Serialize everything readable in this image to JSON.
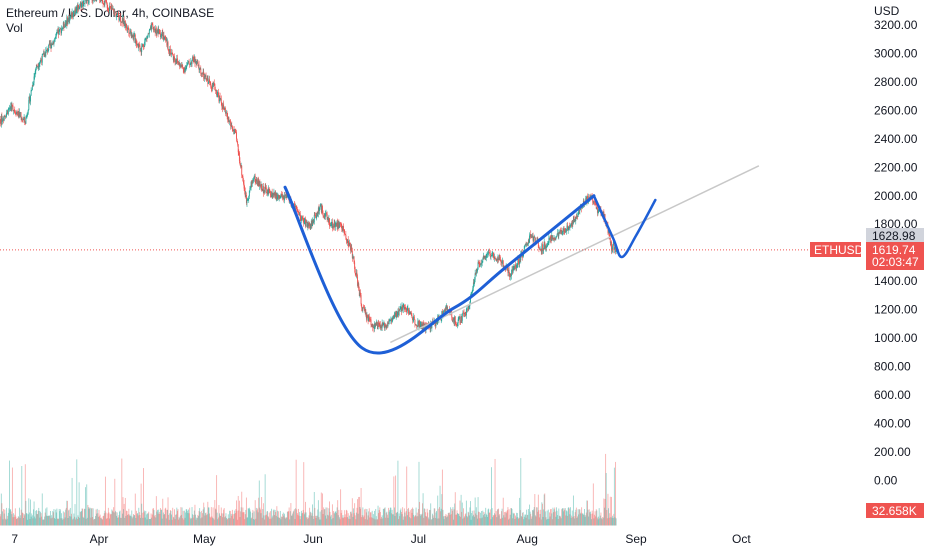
{
  "header": {
    "title": "Ethereum / U.S. Dollar, 4h, COINBASE",
    "vol_label": "Vol"
  },
  "colors": {
    "up": "#26a69a",
    "down": "#ef5350",
    "pattern": "#1e5fd6",
    "trendline": "#c8c8c8",
    "price_line": "#ef5350",
    "grid": "#f0f3fa"
  },
  "chart_data": {
    "type": "candlestick",
    "title": "Ethereum / U.S. Dollar, 4h, COINBASE",
    "symbol": "ETHUSD",
    "currency": "USD",
    "interval": "4h",
    "exchange": "COINBASE",
    "grid": false,
    "ylim": [
      -200,
      3350
    ],
    "y_ticks": [
      "3200.00",
      "3000.00",
      "2800.00",
      "2600.00",
      "2400.00",
      "2200.00",
      "2000.00",
      "1800.00",
      "1400.00",
      "1200.00",
      "1000.00",
      "800.00",
      "600.00",
      "400.00",
      "200.00",
      "0.00"
    ],
    "x_ticks": [
      "7",
      "Apr",
      "May",
      "Jun",
      "Jul",
      "Aug",
      "Sep",
      "Oct"
    ],
    "x_tick_days": [
      -24,
      0,
      30,
      61,
      91,
      122,
      153,
      183
    ],
    "date_origin_label": "Apr",
    "price_path": [
      [
        -31,
        2600
      ],
      [
        -28,
        2530
      ],
      [
        -25,
        2630
      ],
      [
        -21,
        2520
      ],
      [
        -18,
        2900
      ],
      [
        -14,
        3050
      ],
      [
        -10,
        3200
      ],
      [
        -6,
        3330
      ],
      [
        -3,
        3380
      ],
      [
        0,
        3400
      ],
      [
        3,
        3320
      ],
      [
        6,
        3250
      ],
      [
        9,
        3150
      ],
      [
        12,
        3030
      ],
      [
        15,
        3180
      ],
      [
        18,
        3130
      ],
      [
        21,
        2980
      ],
      [
        24,
        2890
      ],
      [
        27,
        2960
      ],
      [
        30,
        2830
      ],
      [
        33,
        2760
      ],
      [
        36,
        2580
      ],
      [
        39,
        2420
      ],
      [
        42,
        1960
      ],
      [
        44,
        2130
      ],
      [
        47,
        2040
      ],
      [
        51,
        1990
      ],
      [
        54,
        1980
      ],
      [
        57,
        1860
      ],
      [
        60,
        1780
      ],
      [
        63,
        1920
      ],
      [
        66,
        1800
      ],
      [
        69,
        1790
      ],
      [
        72,
        1610
      ],
      [
        75,
        1210
      ],
      [
        78,
        1090
      ],
      [
        81,
        1080
      ],
      [
        84,
        1140
      ],
      [
        87,
        1230
      ],
      [
        90,
        1120
      ],
      [
        93,
        1070
      ],
      [
        96,
        1110
      ],
      [
        99,
        1210
      ],
      [
        102,
        1100
      ],
      [
        105,
        1200
      ],
      [
        108,
        1520
      ],
      [
        111,
        1600
      ],
      [
        114,
        1560
      ],
      [
        117,
        1450
      ],
      [
        120,
        1560
      ],
      [
        123,
        1720
      ],
      [
        126,
        1630
      ],
      [
        129,
        1700
      ],
      [
        132,
        1740
      ],
      [
        135,
        1820
      ],
      [
        138,
        1950
      ],
      [
        140,
        2000
      ],
      [
        142,
        1900
      ],
      [
        144,
        1860
      ],
      [
        146,
        1640
      ],
      [
        147.5,
        1620
      ]
    ],
    "cup_curve": [
      [
        53,
        2060
      ],
      [
        75,
        930
      ],
      [
        101,
        1210
      ],
      [
        116,
        1500
      ],
      [
        141,
        2000
      ]
    ],
    "handle_curve": [
      [
        141,
        2000
      ],
      [
        146.5,
        1700
      ],
      [
        149,
        1570
      ],
      [
        153,
        1720
      ],
      [
        158.5,
        1970
      ]
    ],
    "trendline": [
      [
        83,
        970
      ],
      [
        188,
        2210
      ]
    ],
    "volume_axis_ticks": [
      "600.00",
      "400.00",
      "200.00",
      "0.00"
    ],
    "volume_max": 620,
    "last_price": 1619.74,
    "last_price_label": "1619.74",
    "countdown": "02:03:47",
    "high_tag": "1628.98",
    "high_tag_value": 1628.98,
    "symbol_tag": "ETHUSD",
    "volume_last_label": "32.658K"
  }
}
